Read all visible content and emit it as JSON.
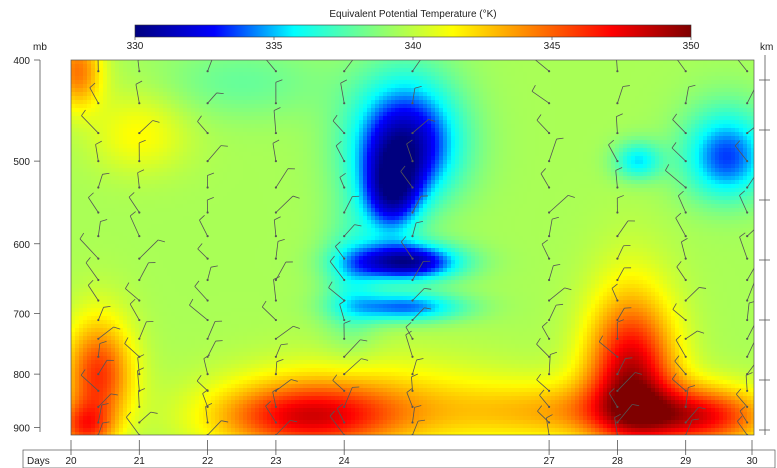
{
  "chart_data": {
    "type": "heatmap",
    "title": "Equivalent Potential Temperature (°K)",
    "colorbar": {
      "min": 330,
      "max": 350,
      "ticks": [
        330,
        335,
        340,
        345,
        350
      ],
      "colors": [
        "#00007f",
        "#0000ff",
        "#00ffff",
        "#80ff80",
        "#ffff00",
        "#ff8000",
        "#ff0000",
        "#7f0000"
      ],
      "position": "top"
    },
    "y_axis": {
      "label": "mb",
      "range": [
        400,
        915
      ],
      "ticks": [
        400,
        500,
        600,
        700,
        800,
        900
      ],
      "scale": "log"
    },
    "y2_axis": {
      "label": "km"
    },
    "x_axis": {
      "label": "Days",
      "range": [
        20,
        30
      ],
      "ticks": [
        20,
        21,
        22,
        23,
        24,
        27,
        28,
        29,
        30
      ]
    },
    "field": {
      "background": 339.5,
      "features": [
        {
          "x": 24.9,
          "p": 480,
          "sx": 0.55,
          "sp": 45,
          "value": -8.5
        },
        {
          "x": 24.7,
          "p": 540,
          "sx": 0.3,
          "sp": 35,
          "value": -6.5
        },
        {
          "x": 24.9,
          "p": 625,
          "sx": 0.55,
          "sp": 18,
          "value": -9.0
        },
        {
          "x": 24.9,
          "p": 690,
          "sx": 0.6,
          "sp": 16,
          "value": -5.5
        },
        {
          "x": 24.1,
          "p": 650,
          "sx": 0.3,
          "sp": 70,
          "value": -2.5
        },
        {
          "x": 29.6,
          "p": 495,
          "sx": 0.45,
          "sp": 35,
          "value": -6.0
        },
        {
          "x": 28.3,
          "p": 500,
          "sx": 0.25,
          "sp": 15,
          "value": -4.0
        },
        {
          "x": 20.4,
          "p": 800,
          "sx": 0.35,
          "sp": 65,
          "value": 6.5
        },
        {
          "x": 20.2,
          "p": 900,
          "sx": 0.3,
          "sp": 35,
          "value": 5.5
        },
        {
          "x": 20.1,
          "p": 410,
          "sx": 0.25,
          "sp": 25,
          "value": 5.0
        },
        {
          "x": 23.4,
          "p": 880,
          "sx": 0.9,
          "sp": 45,
          "value": 6.5
        },
        {
          "x": 24.5,
          "p": 860,
          "sx": 1.4,
          "sp": 60,
          "value": 3.0
        },
        {
          "x": 28.2,
          "p": 800,
          "sx": 0.45,
          "sp": 90,
          "value": 9.0
        },
        {
          "x": 29.2,
          "p": 880,
          "sx": 0.7,
          "sp": 40,
          "value": 7.0
        },
        {
          "x": 27.5,
          "p": 870,
          "sx": 1.2,
          "sp": 40,
          "value": 3.5
        },
        {
          "x": 22.5,
          "p": 420,
          "sx": 0.9,
          "sp": 25,
          "value": -1.5
        },
        {
          "x": 21.0,
          "p": 470,
          "sx": 0.5,
          "sp": 30,
          "value": 2.0
        }
      ]
    },
    "wind_barbs": {
      "days": [
        20.4,
        21.0,
        22.0,
        23.0,
        24.0,
        25.0,
        27.0,
        28.0,
        29.0,
        29.9
      ],
      "levels": [
        410,
        440,
        470,
        500,
        530,
        560,
        590,
        620,
        650,
        680,
        710,
        740,
        770,
        800,
        830,
        860,
        890,
        915
      ],
      "color": "#555555"
    },
    "grid": false,
    "legend": "none"
  }
}
